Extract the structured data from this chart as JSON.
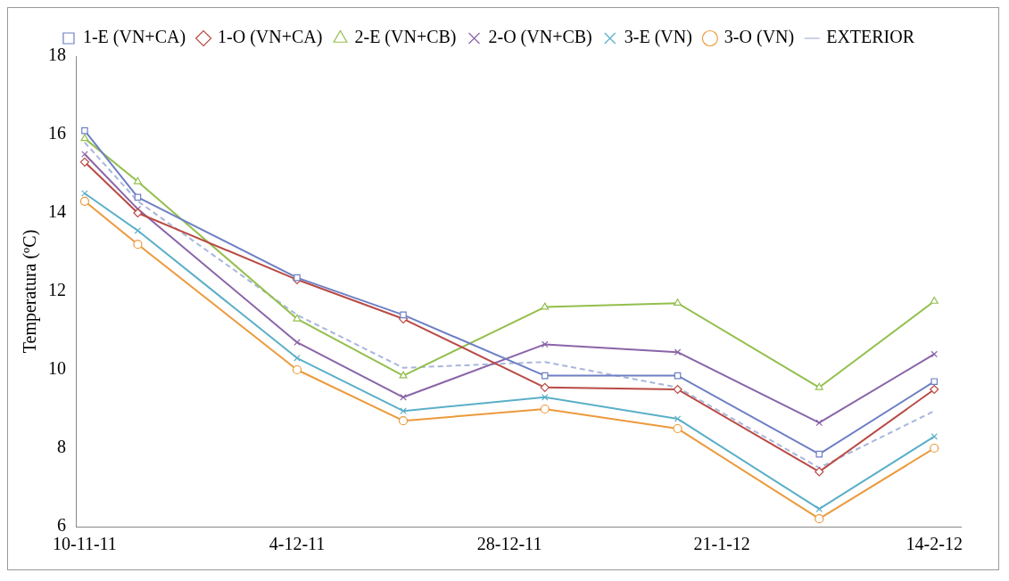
{
  "chart_data": {
    "type": "line",
    "ylabel": "Temperatura (ºC)",
    "x": [
      "2011-11-10",
      "2011-11-16",
      "2011-12-04",
      "2011-12-16",
      "2012-01-01",
      "2012-01-16",
      "2012-02-01",
      "2012-02-14"
    ],
    "xlim": [
      "2011-11-09",
      "2012-02-17"
    ],
    "xticks": [
      {
        "value": "2011-11-10",
        "label": "10-11-11"
      },
      {
        "value": "2011-12-04",
        "label": "4-12-11"
      },
      {
        "value": "2011-12-28",
        "label": "28-12-11"
      },
      {
        "value": "2012-01-21",
        "label": "21-1-12"
      },
      {
        "value": "2012-02-14",
        "label": "14-2-12"
      }
    ],
    "ylim": [
      6,
      18
    ],
    "yticks": [
      6,
      8,
      10,
      12,
      14,
      16,
      18
    ],
    "grid": false,
    "legend": "top",
    "series": [
      {
        "name": "1-E (VN+CA)",
        "color": "#6d7fc4",
        "marker": "square",
        "values": [
          16.1,
          14.4,
          12.35,
          11.4,
          9.85,
          9.85,
          7.85,
          9.7
        ]
      },
      {
        "name": "1-O (VN+CA)",
        "color": "#b94a44",
        "marker": "diamond",
        "values": [
          15.3,
          14.0,
          12.3,
          11.3,
          9.55,
          9.5,
          7.4,
          9.5
        ]
      },
      {
        "name": "2-E (VN+CB)",
        "color": "#93bf4c",
        "marker": "triangle",
        "values": [
          15.9,
          14.8,
          11.3,
          9.85,
          11.6,
          11.7,
          9.55,
          11.75
        ]
      },
      {
        "name": "2-O (VN+CB)",
        "color": "#8a64a8",
        "marker": "cross",
        "values": [
          15.5,
          14.1,
          10.7,
          9.3,
          10.65,
          10.45,
          8.65,
          10.4
        ]
      },
      {
        "name": "3-E (VN)",
        "color": "#5aafc8",
        "marker": "cross",
        "values": [
          14.5,
          13.55,
          10.3,
          8.95,
          9.3,
          8.75,
          6.45,
          8.3
        ]
      },
      {
        "name": "3-O (VN)",
        "color": "#ec9a3c",
        "marker": "circle",
        "values": [
          14.3,
          13.2,
          10.0,
          8.7,
          9.0,
          8.5,
          6.2,
          8.0
        ]
      },
      {
        "name": "EXTERIOR",
        "color": "#a9b6dc",
        "marker": "none",
        "line_style": "dashed",
        "values": [
          15.8,
          14.3,
          11.4,
          10.05,
          10.2,
          9.55,
          7.5,
          8.95
        ]
      }
    ]
  }
}
